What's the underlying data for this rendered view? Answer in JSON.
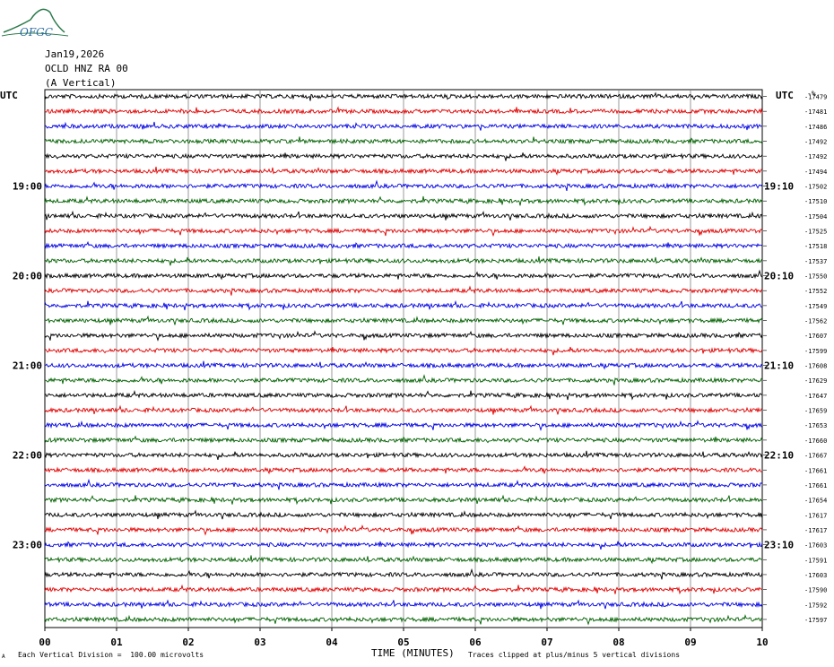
{
  "header": {
    "logo_text": "OFGC",
    "date": "Jan19,2026",
    "station": "OCLD HNZ RA 00",
    "component": "(A Vertical)"
  },
  "left_utc_label": "UTC",
  "right_utc_label": "UTC",
  "right_unit_label": "-%",
  "footer": {
    "scale_note": "Each Vertical Division =  100.00 microvolts",
    "clip_note": "Traces clipped at plus/minus 5 vertical divisions",
    "mark": "A"
  },
  "colors": {
    "trace_cycle": [
      "#000000",
      "#e00000",
      "#0000e0",
      "#006000"
    ],
    "grid": "#808080",
    "logo": "#2a7a4a"
  },
  "chart_data": {
    "type": "line",
    "xlabel": "TIME (MINUTES)",
    "x_ticks": [
      "00",
      "01",
      "02",
      "03",
      "04",
      "05",
      "06",
      "07",
      "08",
      "09",
      "10"
    ],
    "xlim": [
      0,
      10
    ],
    "trace_count": 36,
    "left_hour_labels": [
      {
        "trace": 6,
        "label": "19:00"
      },
      {
        "trace": 12,
        "label": "20:00"
      },
      {
        "trace": 18,
        "label": "21:00"
      },
      {
        "trace": 24,
        "label": "22:00"
      },
      {
        "trace": 30,
        "label": "23:00"
      }
    ],
    "right_hour_labels": [
      {
        "trace": 6,
        "label": "19:10"
      },
      {
        "trace": 12,
        "label": "20:10"
      },
      {
        "trace": 18,
        "label": "21:10"
      },
      {
        "trace": 24,
        "label": "22:10"
      },
      {
        "trace": 30,
        "label": "23:10"
      }
    ],
    "trace_offsets": [
      -17479,
      -17481,
      -17486,
      -17492,
      -17492,
      -17494,
      -17502,
      -17510,
      -17504,
      -17525,
      -17518,
      -17537,
      -17550,
      -17552,
      -17549,
      -17562,
      -17607,
      -17599,
      -17608,
      -17629,
      -17647,
      -17659,
      -17653,
      -17660,
      -17667,
      -17661,
      -17661,
      -17654,
      -17617,
      -17617,
      -17603,
      -17591,
      -17603,
      -17590,
      -17592,
      -17597
    ]
  }
}
